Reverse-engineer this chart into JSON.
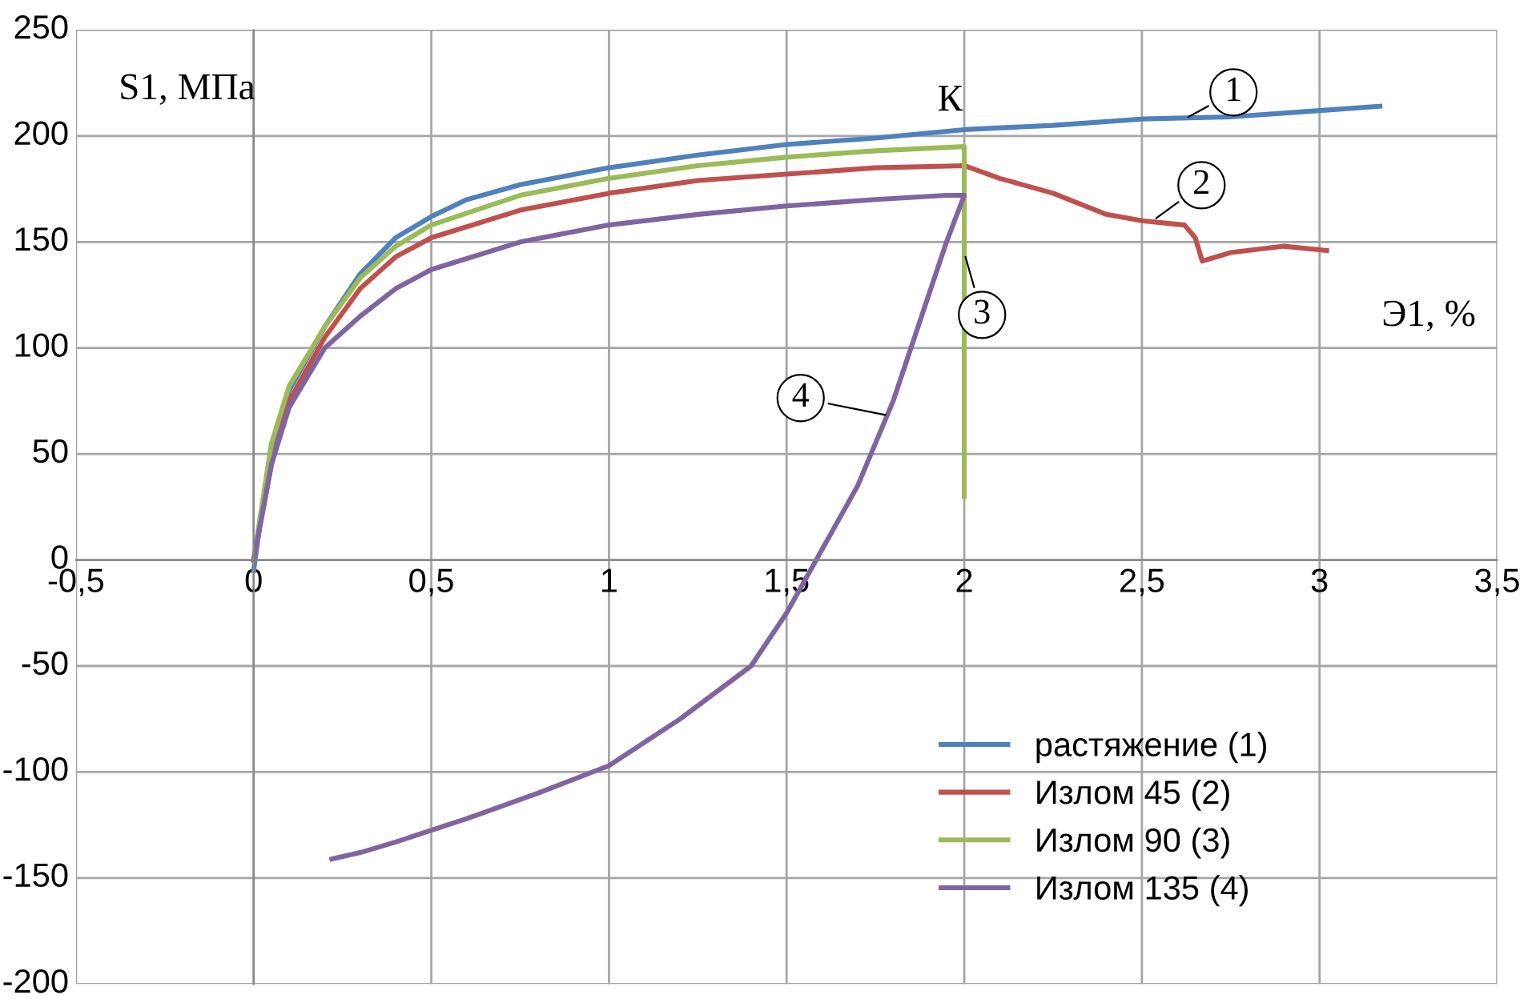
{
  "chart_data": {
    "type": "line",
    "xlabel": "Э1, %",
    "ylabel": "S1, МПа",
    "xlim": [
      -0.5,
      3.5
    ],
    "ylim": [
      -200,
      250
    ],
    "xticks": [
      {
        "value": -0.5,
        "label": "-0,5"
      },
      0,
      {
        "value": 0.5,
        "label": "0,5"
      },
      1,
      {
        "value": 1.5,
        "label": "1,5"
      },
      2,
      {
        "value": 2.5,
        "label": "2,5"
      },
      3,
      {
        "value": 3.5,
        "label": "3,5"
      }
    ],
    "yticks": [
      -200,
      -150,
      -100,
      -50,
      0,
      50,
      100,
      150,
      200,
      250
    ],
    "grid": true,
    "legend": "bottom right",
    "marker": "none",
    "line_style": "solid",
    "series": [
      {
        "name": "растяжение (1)",
        "color": "#4f81bd",
        "x": [
          0,
          0.02,
          0.05,
          0.1,
          0.2,
          0.3,
          0.4,
          0.5,
          0.6,
          0.75,
          1,
          1.25,
          1.5,
          1.75,
          2,
          2.25,
          2.5,
          2.75,
          3,
          3.17
        ],
        "values": [
          -5,
          20,
          50,
          80,
          110,
          135,
          152,
          162,
          170,
          177,
          185,
          191,
          196,
          199,
          203,
          205,
          208,
          209,
          212,
          214
        ]
      },
      {
        "name": "Излом 45 (2)",
        "color": "#c0504d",
        "x": [
          0,
          0.05,
          0.1,
          0.2,
          0.3,
          0.4,
          0.5,
          0.75,
          1,
          1.25,
          1.5,
          1.75,
          2,
          2.1,
          2.25,
          2.4,
          2.5,
          2.62,
          2.65,
          2.67,
          2.75,
          2.9,
          3.02
        ],
        "values": [
          0,
          45,
          75,
          105,
          128,
          143,
          152,
          165,
          173,
          179,
          182,
          185,
          186,
          180,
          173,
          163,
          160,
          158,
          152,
          141,
          145,
          148,
          146
        ]
      },
      {
        "name": "Излом 90 (3)",
        "color": "#9bbb59",
        "x": [
          0,
          0.05,
          0.1,
          0.2,
          0.3,
          0.4,
          0.5,
          0.75,
          1,
          1.25,
          1.5,
          1.75,
          2,
          2
        ],
        "values": [
          0,
          55,
          82,
          110,
          133,
          148,
          158,
          172,
          180,
          186,
          190,
          193,
          195,
          30
        ]
      },
      {
        "name": "Излом 135 (4)",
        "color": "#8064a2",
        "x": [
          0,
          0.05,
          0.1,
          0.2,
          0.3,
          0.4,
          0.5,
          0.75,
          1,
          1.25,
          1.5,
          1.75,
          1.95,
          2,
          1.95,
          1.9,
          1.8,
          1.7,
          1.6,
          1.5,
          1.4,
          1.2,
          1,
          0.8,
          0.6,
          0.4,
          0.3,
          0.22
        ],
        "values": [
          0,
          45,
          72,
          100,
          115,
          128,
          137,
          150,
          158,
          163,
          167,
          170,
          172,
          172,
          150,
          125,
          75,
          35,
          5,
          -25,
          -50,
          -75,
          -97,
          -110,
          -122,
          -133,
          -138,
          -141
        ]
      }
    ],
    "annotations": [
      "К",
      {
        "text": "1",
        "x": 2.62,
        "y": 208
      },
      {
        "text": "2",
        "x": 2.53,
        "y": 160
      },
      {
        "text": "3",
        "x": 2,
        "y": 145
      },
      {
        "text": "4",
        "x": 1.79,
        "y": 68
      }
    ]
  }
}
